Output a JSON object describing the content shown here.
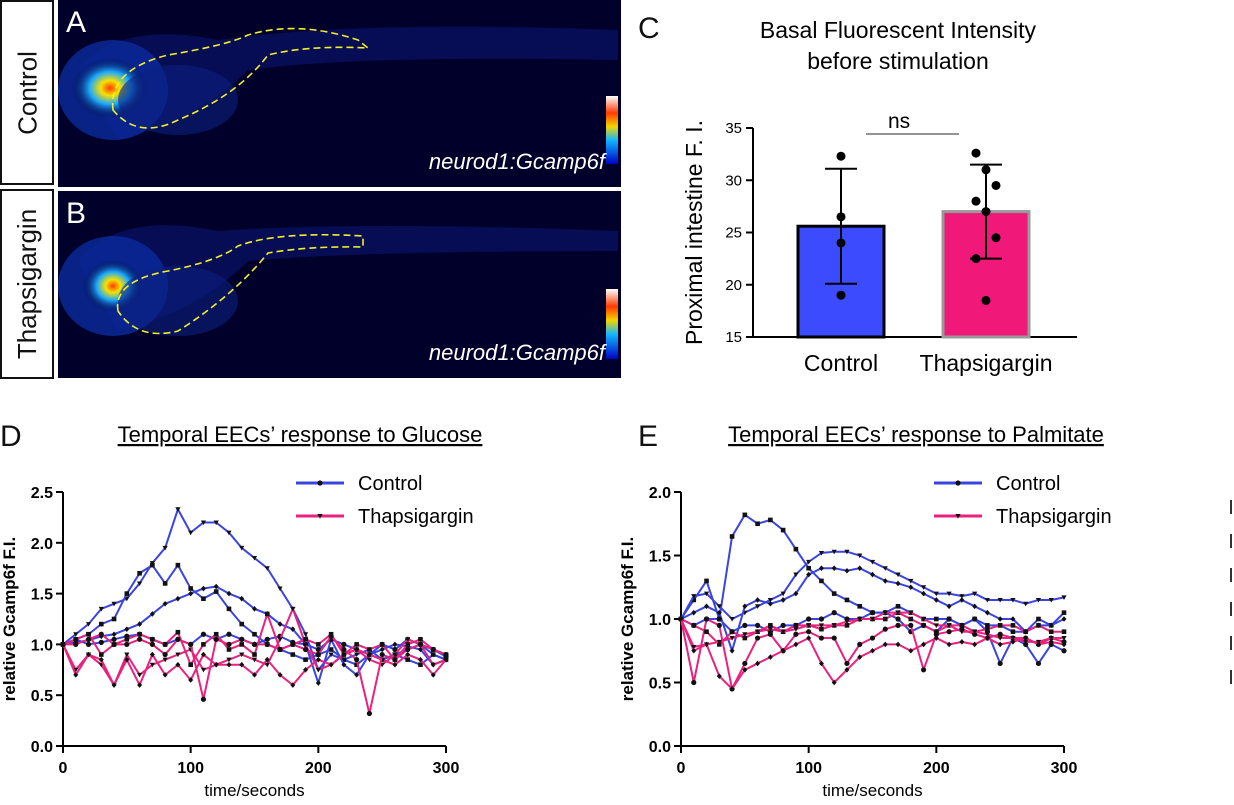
{
  "panels": {
    "A": {
      "letter": "A",
      "row_label": "Control",
      "caption": "neurod1:Gcamp6f"
    },
    "B": {
      "letter": "B",
      "row_label": "Thapsigargin",
      "caption": "neurod1:Gcamp6f"
    },
    "C": {
      "letter": "C"
    },
    "D": {
      "letter": "D"
    },
    "E": {
      "letter": "E"
    }
  },
  "colors": {
    "control": "#3a44e0",
    "thapsigargin": "#e8227e",
    "bar_control": "#3d4bff",
    "bar_thapsigargin": "#f0197a"
  },
  "chart_data": [
    {
      "type": "bar",
      "title": "Basal Fluorescent Intensity\nbefore stimulation",
      "title_lines": [
        "Basal Fluorescent Intensity",
        "before stimulation"
      ],
      "ylabel": "Proximal intestine F. I.",
      "categories": [
        "Control",
        "Thapsigargin"
      ],
      "values": [
        25.6,
        27.0
      ],
      "sd": [
        5.5,
        4.5
      ],
      "points": [
        [
          32.3,
          26.5,
          24.0,
          19.0
        ],
        [
          32.6,
          31.0,
          29.5,
          28.0,
          27.0,
          24.5,
          22.5,
          18.5
        ]
      ],
      "ylim": [
        15,
        35
      ],
      "yticks": [
        "15",
        "20",
        "25",
        "30",
        "35"
      ],
      "annotation": "ns"
    },
    {
      "type": "line",
      "title": "Temporal EECs’ response to Glucose",
      "xlabel": "time/seconds",
      "ylabel": "relative Gcamp6f F.I.",
      "xlim": [
        0,
        300
      ],
      "ylim": [
        0,
        2.5
      ],
      "xticks": [
        "0",
        "100",
        "200",
        "300"
      ],
      "yticks": [
        "0.0",
        "0.5",
        "1.0",
        "1.5",
        "2.0",
        "2.5"
      ],
      "legend": [
        "Control",
        "Thapsigargin"
      ],
      "x": [
        0,
        10,
        20,
        30,
        40,
        50,
        60,
        70,
        80,
        90,
        100,
        110,
        120,
        130,
        140,
        150,
        160,
        170,
        180,
        190,
        200,
        210,
        220,
        230,
        240,
        250,
        260,
        270,
        280,
        290,
        300
      ],
      "series": [
        {
          "group": "control",
          "marker": "triangle",
          "values": [
            1.0,
            1.1,
            1.2,
            1.35,
            1.4,
            1.45,
            1.6,
            1.8,
            1.95,
            2.33,
            2.1,
            2.2,
            2.2,
            2.1,
            1.95,
            1.85,
            1.75,
            1.55,
            1.35,
            1.1,
            0.75,
            0.9,
            0.85,
            0.9,
            0.95,
            0.85,
            0.9,
            0.95,
            1.0,
            0.9,
            0.85
          ]
        },
        {
          "group": "control",
          "marker": "square",
          "values": [
            1.0,
            1.05,
            1.1,
            1.2,
            1.25,
            1.5,
            1.7,
            1.78,
            1.6,
            1.78,
            1.55,
            1.45,
            1.52,
            1.35,
            1.2,
            1.1,
            1.0,
            0.95,
            0.9,
            0.85,
            0.9,
            0.95,
            0.85,
            0.8,
            0.9,
            0.85,
            0.9,
            0.85,
            0.8,
            0.9,
            0.85
          ]
        },
        {
          "group": "control",
          "marker": "diamond",
          "values": [
            1.0,
            1.02,
            1.04,
            1.08,
            1.1,
            1.15,
            1.2,
            1.3,
            1.4,
            1.45,
            1.5,
            1.55,
            1.57,
            1.5,
            1.45,
            1.35,
            1.3,
            1.2,
            1.15,
            1.0,
            0.62,
            1.05,
            0.8,
            0.7,
            0.9,
            0.95,
            1.0,
            0.98,
            0.95,
            0.8,
            0.85
          ]
        },
        {
          "group": "control",
          "marker": "circle",
          "values": [
            1.0,
            1.05,
            1.0,
            1.02,
            1.05,
            1.08,
            1.1,
            1.05,
            1.0,
            1.05,
            1.0,
            1.1,
            1.05,
            1.1,
            1.05,
            1.0,
            1.05,
            1.08,
            1.02,
            1.0,
            0.95,
            1.05,
            1.0,
            0.95,
            0.9,
            1.0,
            0.95,
            1.05,
            1.0,
            0.95,
            0.88
          ]
        },
        {
          "group": "thapsigargin",
          "marker": "triangle",
          "values": [
            1.0,
            0.75,
            0.9,
            0.8,
            0.6,
            0.9,
            0.7,
            0.8,
            0.85,
            0.9,
            0.95,
            0.75,
            0.8,
            0.85,
            0.9,
            0.85,
            0.8,
            1.05,
            1.35,
            1.0,
            0.75,
            0.8,
            0.9,
            0.95,
            0.85,
            0.8,
            0.9,
            1.05,
            1.0,
            0.8,
            0.85
          ]
        },
        {
          "group": "thapsigargin",
          "marker": "diamond",
          "values": [
            1.0,
            0.7,
            0.9,
            0.85,
            0.6,
            0.85,
            0.6,
            0.9,
            0.7,
            0.8,
            0.65,
            0.9,
            0.8,
            0.8,
            0.8,
            0.7,
            0.85,
            0.7,
            0.6,
            0.75,
            0.85,
            0.8,
            0.9,
            0.95,
            0.9,
            0.85,
            0.8,
            0.9,
            0.85,
            0.7,
            0.85
          ]
        },
        {
          "group": "thapsigargin",
          "marker": "square",
          "values": [
            1.0,
            1.05,
            1.1,
            0.9,
            1.0,
            1.05,
            1.1,
            1.05,
            1.0,
            1.12,
            0.8,
            1.0,
            1.1,
            0.95,
            1.0,
            0.9,
            1.3,
            0.95,
            1.0,
            1.05,
            1.0,
            1.1,
            0.9,
            1.0,
            0.95,
            1.0,
            0.85,
            1.0,
            1.05,
            0.95,
            0.9
          ]
        },
        {
          "group": "thapsigargin",
          "marker": "circle",
          "values": [
            1.0,
            1.0,
            1.05,
            1.1,
            1.0,
            1.0,
            1.05,
            1.0,
            0.9,
            1.05,
            1.0,
            0.46,
            1.05,
            1.0,
            1.05,
            1.0,
            1.0,
            0.95,
            1.0,
            0.95,
            0.9,
            1.08,
            0.95,
            0.85,
            0.32,
            0.9,
            0.85,
            0.95,
            1.0,
            0.95,
            0.9
          ]
        }
      ]
    },
    {
      "type": "line",
      "title": "Temporal EECs’ response to Palmitate",
      "xlabel": "time/seconds",
      "ylabel": "relative Gcamp6f F.I.",
      "xlim": [
        0,
        300
      ],
      "ylim": [
        0,
        2.0
      ],
      "xticks": [
        "0",
        "100",
        "200",
        "300"
      ],
      "yticks": [
        "0.0",
        "0.5",
        "1.0",
        "1.5",
        "2.0"
      ],
      "legend": [
        "Control",
        "Thapsigargin"
      ],
      "x": [
        0,
        10,
        20,
        30,
        40,
        50,
        60,
        70,
        80,
        90,
        100,
        110,
        120,
        130,
        140,
        150,
        160,
        170,
        180,
        190,
        200,
        210,
        220,
        230,
        240,
        250,
        260,
        270,
        280,
        290,
        300
      ],
      "series": [
        {
          "group": "control",
          "marker": "square",
          "values": [
            1.0,
            1.15,
            1.3,
            1.0,
            1.65,
            1.82,
            1.75,
            1.78,
            1.7,
            1.55,
            1.4,
            1.3,
            1.2,
            1.15,
            1.1,
            1.05,
            1.05,
            1.1,
            1.05,
            1.0,
            1.0,
            1.0,
            0.95,
            1.0,
            0.95,
            0.95,
            0.9,
            0.9,
            1.0,
            0.95,
            1.05
          ]
        },
        {
          "group": "control",
          "marker": "triangle",
          "values": [
            1.0,
            1.18,
            1.2,
            1.1,
            1.0,
            1.05,
            1.1,
            1.15,
            1.2,
            1.35,
            1.45,
            1.52,
            1.53,
            1.53,
            1.5,
            1.45,
            1.4,
            1.35,
            1.3,
            1.25,
            1.2,
            1.2,
            1.18,
            1.2,
            1.15,
            1.15,
            1.15,
            1.12,
            1.15,
            1.15,
            1.17
          ]
        },
        {
          "group": "control",
          "marker": "diamond",
          "values": [
            1.0,
            1.05,
            1.1,
            1.05,
            0.75,
            1.1,
            1.15,
            1.12,
            1.15,
            1.2,
            1.35,
            1.4,
            1.4,
            1.38,
            1.4,
            1.35,
            1.3,
            1.28,
            1.25,
            1.2,
            1.15,
            1.1,
            1.15,
            1.1,
            1.05,
            1.0,
            1.0,
            0.9,
            0.95,
            0.95,
            1.0
          ]
        },
        {
          "group": "control",
          "marker": "circle",
          "values": [
            1.0,
            0.95,
            1.0,
            1.0,
            0.9,
            0.95,
            0.95,
            0.9,
            0.95,
            0.95,
            1.0,
            1.0,
            1.05,
            1.0,
            1.0,
            1.05,
            1.05,
            1.0,
            0.9,
            0.95,
            0.9,
            1.0,
            0.95,
            1.0,
            0.9,
            0.65,
            0.85,
            0.8,
            0.65,
            0.8,
            0.75
          ]
        },
        {
          "group": "thapsigargin",
          "marker": "circle",
          "values": [
            1.0,
            0.5,
            1.0,
            0.95,
            0.45,
            0.65,
            0.85,
            0.88,
            0.75,
            0.88,
            0.9,
            0.85,
            0.85,
            0.65,
            0.8,
            0.85,
            0.92,
            0.95,
            0.95,
            0.6,
            0.88,
            0.9,
            0.92,
            0.88,
            0.85,
            0.88,
            0.85,
            0.85,
            0.8,
            0.85,
            0.82
          ]
        },
        {
          "group": "thapsigargin",
          "marker": "diamond",
          "values": [
            1.0,
            0.75,
            0.8,
            0.55,
            0.45,
            0.6,
            0.65,
            0.7,
            0.75,
            0.8,
            0.85,
            0.65,
            0.5,
            0.6,
            0.7,
            0.75,
            0.8,
            0.8,
            0.75,
            0.8,
            0.85,
            0.8,
            0.82,
            0.8,
            0.85,
            0.8,
            0.82,
            0.85,
            0.8,
            0.82,
            0.8
          ]
        },
        {
          "group": "thapsigargin",
          "marker": "square",
          "values": [
            1.0,
            0.95,
            0.9,
            0.8,
            0.9,
            0.85,
            0.9,
            0.95,
            0.9,
            0.95,
            0.95,
            0.92,
            0.95,
            0.95,
            1.0,
            1.0,
            1.0,
            1.05,
            1.0,
            0.95,
            0.9,
            0.95,
            0.95,
            0.9,
            0.92,
            0.95,
            0.95,
            0.9,
            0.95,
            0.9,
            0.9
          ]
        },
        {
          "group": "thapsigargin",
          "marker": "triangle",
          "values": [
            1.0,
            0.78,
            0.8,
            0.82,
            0.85,
            0.88,
            0.9,
            0.92,
            0.9,
            0.92,
            0.95,
            0.95,
            0.95,
            0.98,
            1.0,
            1.0,
            1.05,
            1.05,
            1.05,
            1.0,
            0.95,
            0.95,
            0.9,
            0.9,
            0.88,
            0.85,
            0.85,
            0.82,
            0.82,
            0.85,
            0.85
          ]
        }
      ]
    }
  ]
}
